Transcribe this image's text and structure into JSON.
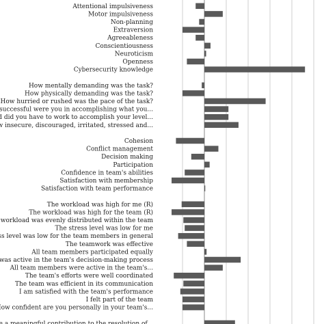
{
  "chart_data": {
    "type": "bar",
    "orientation": "horizontal",
    "grid": true,
    "legend": "none",
    "bar_color": "#595959",
    "grid_color": "#cfcfcf",
    "xlim": [
      -0.5,
      2.5
    ],
    "gridlines": [
      -0.5,
      0,
      0.5,
      1,
      1.5,
      2,
      2.5
    ],
    "groups": [
      {
        "rows": [
          {
            "label": "Attentional impulsiveness",
            "value": -0.2
          },
          {
            "label": "Motor impulsiveness",
            "value": 0.42
          },
          {
            "label": "Non-planning",
            "value": -0.12
          },
          {
            "label": "Extraversion",
            "value": -0.5
          },
          {
            "label": "Agreeableness",
            "value": -0.2
          },
          {
            "label": "Conscientiousness",
            "value": 0.14
          },
          {
            "label": "Neuroticism",
            "value": 0.04
          },
          {
            "label": "Openness",
            "value": -0.4
          },
          {
            "label": "Cybersecurity knowledge",
            "value": 2.3
          }
        ]
      },
      {
        "rows": [
          {
            "label": "How mentally demanding was the task?",
            "value": -0.06
          },
          {
            "label": "How physically demanding was the task?",
            "value": -0.5
          },
          {
            "label": "How hurried or rushed was the pace of the task?",
            "value": 1.4
          },
          {
            "label": "How successful were you in accomplishing what you...",
            "value": 0.55
          },
          {
            "label": "How hard did you have to work to accomplish your level...",
            "value": 0.55
          },
          {
            "label": "How insecure, discouraged, irritated, stressed and...",
            "value": 0.78
          }
        ]
      },
      {
        "rows": [
          {
            "label": "Cohesion",
            "value": -0.65
          },
          {
            "label": "Conflict management",
            "value": 0.32
          },
          {
            "label": "Decision making",
            "value": -0.3
          },
          {
            "label": "Participation",
            "value": 0.12
          },
          {
            "label": "Confidence in team's abilities",
            "value": -0.45
          },
          {
            "label": "Satisfaction with membership",
            "value": -0.75
          },
          {
            "label": "Satisfaction with team performance",
            "value": 0.02
          }
        ]
      },
      {
        "rows": [
          {
            "label": "The workload was high for me (R)",
            "value": -0.52
          },
          {
            "label": "The workload was high for the team (R)",
            "value": -0.75
          },
          {
            "label": "The workload was evenly distributed within the team",
            "value": -0.48
          },
          {
            "label": "The stress level was low for me",
            "value": -0.45
          },
          {
            "label": "The stress level was low for the team members in general",
            "value": -0.6
          },
          {
            "label": "The teamwork was effective",
            "value": -0.4
          },
          {
            "label": "All team members participated equally",
            "value": 0.05
          },
          {
            "label": "I was active in the team's decision-making process",
            "value": 0.83
          },
          {
            "label": "All team members were active in the team's...",
            "value": 0.42
          },
          {
            "label": "The team's efforts were well coordinated",
            "value": -0.7
          },
          {
            "label": "The team was efficient in its communication",
            "value": -0.48
          },
          {
            "label": "I am satisfied with the team's performance",
            "value": -0.55
          },
          {
            "label": "I felt part of the team",
            "value": -0.5
          },
          {
            "label": "How confident are you personally in your team's...",
            "value": -0.5
          }
        ]
      },
      {
        "rows": [
          {
            "label": "I believe I made a meaningful contribution to the resolution of...",
            "value": 0.7
          }
        ]
      }
    ]
  }
}
